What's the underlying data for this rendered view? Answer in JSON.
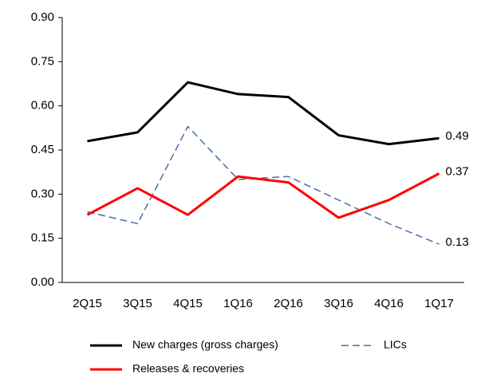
{
  "chart_data": {
    "type": "line",
    "categories": [
      "2Q15",
      "3Q15",
      "4Q15",
      "1Q16",
      "2Q16",
      "3Q16",
      "4Q16",
      "1Q17"
    ],
    "series": [
      {
        "name": "New charges (gross charges)",
        "color": "#000000",
        "dash": false,
        "values": [
          0.48,
          0.51,
          0.68,
          0.64,
          0.63,
          0.5,
          0.47,
          0.49
        ]
      },
      {
        "name": "LICs",
        "color": "#4a6da7",
        "dash": true,
        "values": [
          0.24,
          0.2,
          0.53,
          0.35,
          0.36,
          0.28,
          0.2,
          0.13
        ]
      },
      {
        "name": "Releases & recoveries",
        "color": "#ff0000",
        "dash": false,
        "values": [
          0.23,
          0.32,
          0.23,
          0.36,
          0.34,
          0.22,
          0.28,
          0.37
        ]
      }
    ],
    "ylim": [
      0,
      0.9
    ],
    "yticks": [
      {
        "value": 0,
        "label": "0.00"
      },
      {
        "value": 0.15,
        "label": "0.15"
      },
      {
        "value": 0.3,
        "label": "0.30"
      },
      {
        "value": 0.45,
        "label": "0.45"
      },
      {
        "value": 0.6,
        "label": "0.60"
      },
      {
        "value": 0.75,
        "label": "0.75"
      },
      {
        "value": 0.9,
        "label": "0.90"
      }
    ],
    "grid": false
  }
}
